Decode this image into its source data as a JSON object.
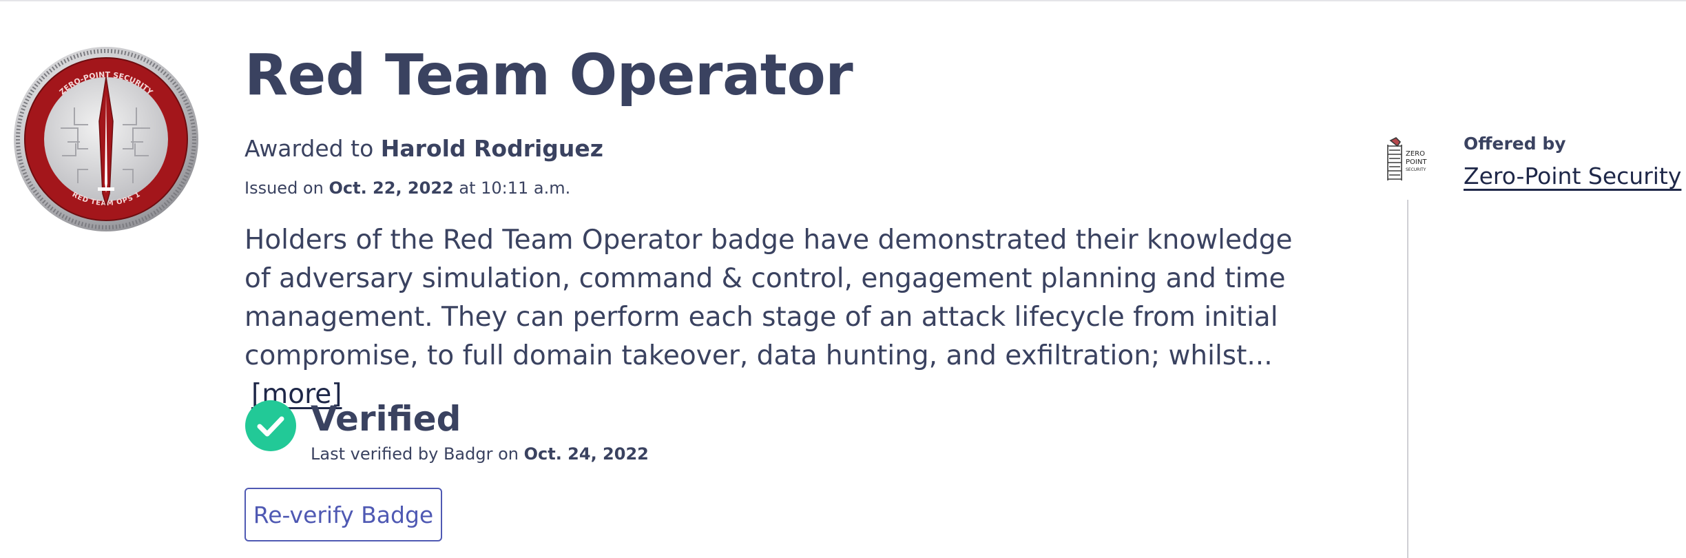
{
  "badge": {
    "title": "Red Team Operator",
    "medal_top_text": "ZERO-POINT SECURITY",
    "medal_bottom_text": "RED TEAM OPS 1",
    "awarded_prefix": "Awarded to",
    "recipient": "Harold Rodriguez",
    "issued_prefix": "Issued on",
    "issued_date": "Oct. 22, 2022",
    "issued_time": "at 10:11 a.m.",
    "description": "Holders of the Red Team Operator badge have demonstrated their knowledge of adversary simulation, command & control, engagement planning and time management. They can perform each stage of an attack lifecycle from initial compromise, to full domain takeover, data hunting, and exfiltration; whilst...",
    "more_label": "[more]"
  },
  "verification": {
    "icon": "check-circle-icon",
    "status": "Verified",
    "last_verified_prefix": "Last verified by Badgr on",
    "last_verified_date": "Oct. 24, 2022",
    "reverify_label": "Re-verify Badge"
  },
  "issuer": {
    "offered_by_label": "Offered by",
    "name": "Zero-Point Security",
    "logo_text": [
      "ZERO",
      "POINT",
      "SECURITY"
    ]
  },
  "colors": {
    "text": "#3a4260",
    "link_dark": "#1e2748",
    "accent": "#4f59b3",
    "verified_green": "#22c997",
    "medal_red": "#a3161b"
  }
}
